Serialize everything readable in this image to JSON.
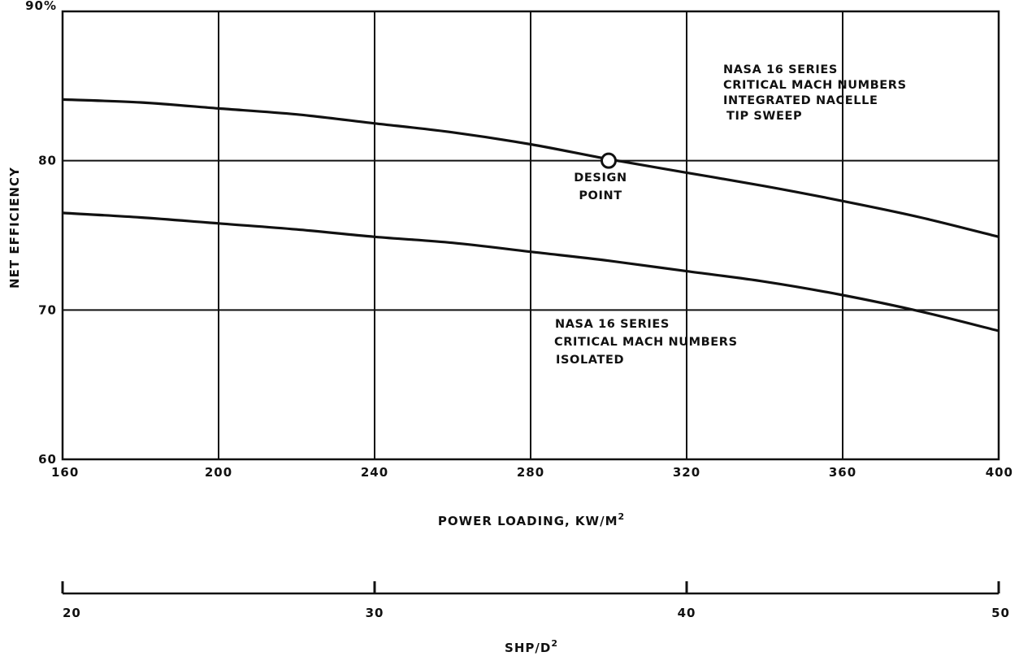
{
  "chart_data": {
    "type": "line",
    "xlabel": "POWER LOADING, KW/M",
    "xlabel_superscript": "2",
    "ylabel": "NET EFFICIENCY",
    "xlim": [
      160,
      400
    ],
    "ylim": [
      60,
      90
    ],
    "x_ticks": [
      160,
      200,
      240,
      280,
      320,
      360,
      400
    ],
    "y_ticks": [
      {
        "value": 60,
        "label": "60"
      },
      {
        "value": 70,
        "label": "70"
      },
      {
        "value": 80,
        "label": "80"
      },
      {
        "value": 90,
        "label": "90%"
      }
    ],
    "grid": true,
    "series": [
      {
        "name": "NASA 16 SERIES CRITICAL MACH NUMBERS INTEGRATED NACELLE TIP SWEEP",
        "x": [
          160,
          180,
          200,
          220,
          240,
          260,
          280,
          300,
          320,
          340,
          360,
          380,
          400
        ],
        "y": [
          84.1,
          83.9,
          83.5,
          83.1,
          82.5,
          81.9,
          81.1,
          80.1,
          79.2,
          78.3,
          77.3,
          76.2,
          74.9
        ]
      },
      {
        "name": "NASA 16 SERIES CRITICAL MACH NUMBERS ISOLATED",
        "x": [
          160,
          180,
          200,
          220,
          240,
          260,
          280,
          300,
          320,
          340,
          360,
          380,
          400
        ],
        "y": [
          76.5,
          76.2,
          75.8,
          75.4,
          74.9,
          74.5,
          73.9,
          73.3,
          72.6,
          71.9,
          71.0,
          69.9,
          68.6
        ]
      }
    ],
    "annotations": [
      {
        "id": "upper",
        "lines": [
          "NASA 16 SERIES",
          "CRITICAL MACH NUMBERS",
          "INTEGRATED NACELLE",
          "TIP SWEEP"
        ]
      },
      {
        "id": "lower",
        "lines": [
          "NASA 16 SERIES",
          "CRITICAL MACH NUMBERS",
          "ISOLATED"
        ]
      },
      {
        "id": "design",
        "lines": [
          "DESIGN",
          "POINT"
        ]
      }
    ],
    "design_point": {
      "x": 300,
      "y": 80
    },
    "secondary_axis": {
      "label": "SHP/D",
      "label_superscript": "2",
      "ticks": [
        20,
        30,
        40,
        50
      ],
      "range": [
        20,
        50
      ]
    }
  }
}
